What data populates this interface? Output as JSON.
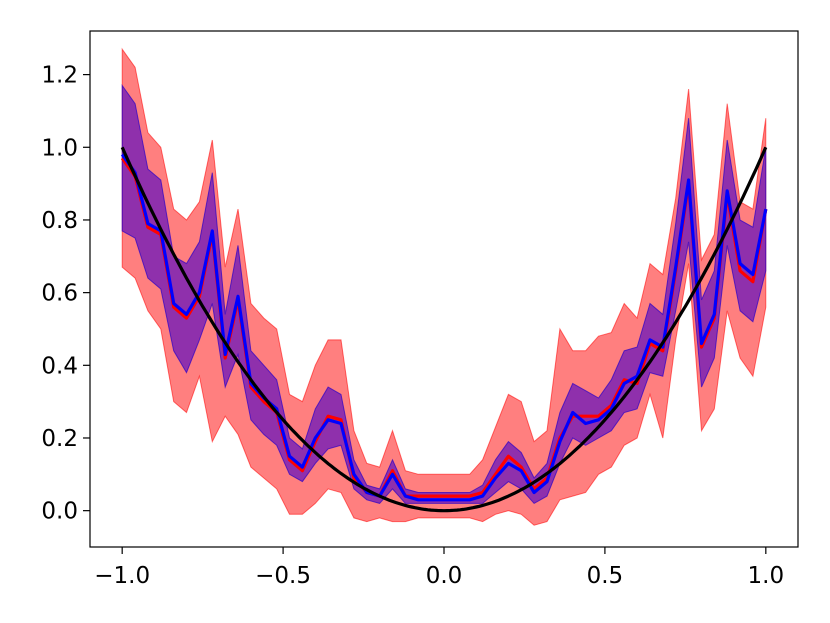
{
  "chart_data": {
    "type": "line",
    "title": "",
    "xlabel": "",
    "ylabel": "",
    "xlim": [
      -1.1,
      1.1
    ],
    "ylim": [
      -0.1,
      1.32
    ],
    "grid": false,
    "x_ticks": [
      {
        "value": -1.0,
        "label": "−1.0"
      },
      {
        "value": -0.5,
        "label": "−0.5"
      },
      {
        "value": 0.0,
        "label": "0.0"
      },
      {
        "value": 0.5,
        "label": "0.5"
      },
      {
        "value": 1.0,
        "label": "1.0"
      }
    ],
    "y_ticks": [
      {
        "value": 0.0,
        "label": "0.0"
      },
      {
        "value": 0.2,
        "label": "0.2"
      },
      {
        "value": 0.4,
        "label": "0.4"
      },
      {
        "value": 0.6,
        "label": "0.6"
      },
      {
        "value": 0.8,
        "label": "0.8"
      },
      {
        "value": 1.0,
        "label": "1.0"
      },
      {
        "value": 1.2,
        "label": "1.2"
      }
    ],
    "x": [
      -1.0,
      -0.96,
      -0.92,
      -0.88,
      -0.84,
      -0.8,
      -0.76,
      -0.72,
      -0.68,
      -0.64,
      -0.6,
      -0.56,
      -0.52,
      -0.48,
      -0.44,
      -0.4,
      -0.36,
      -0.32,
      -0.28,
      -0.24,
      -0.2,
      -0.16,
      -0.12,
      -0.08,
      -0.04,
      0.0,
      0.04,
      0.08,
      0.12,
      0.16,
      0.2,
      0.24,
      0.28,
      0.32,
      0.36,
      0.4,
      0.44,
      0.48,
      0.52,
      0.56,
      0.6,
      0.64,
      0.68,
      0.72,
      0.76,
      0.8,
      0.84,
      0.88,
      0.92,
      0.96,
      1.0
    ],
    "series": [
      {
        "role": "mean",
        "color": "#ff0000",
        "values": [
          0.97,
          0.92,
          0.78,
          0.76,
          0.56,
          0.53,
          0.59,
          0.76,
          0.42,
          0.58,
          0.34,
          0.3,
          0.27,
          0.14,
          0.11,
          0.19,
          0.26,
          0.25,
          0.09,
          0.05,
          0.04,
          0.11,
          0.04,
          0.04,
          0.04,
          0.04,
          0.04,
          0.04,
          0.05,
          0.1,
          0.15,
          0.12,
          0.06,
          0.09,
          0.2,
          0.26,
          0.26,
          0.26,
          0.29,
          0.36,
          0.35,
          0.46,
          0.44,
          0.66,
          0.9,
          0.45,
          0.53,
          0.87,
          0.66,
          0.63,
          0.83
        ],
        "band_lower": [
          0.67,
          0.64,
          0.55,
          0.5,
          0.3,
          0.27,
          0.37,
          0.19,
          0.26,
          0.21,
          0.12,
          0.09,
          0.06,
          -0.01,
          -0.01,
          0.02,
          0.06,
          0.05,
          -0.02,
          -0.03,
          -0.02,
          -0.03,
          -0.03,
          -0.02,
          -0.02,
          -0.02,
          -0.02,
          -0.02,
          -0.03,
          -0.01,
          0.0,
          -0.01,
          -0.04,
          -0.03,
          0.03,
          0.04,
          0.05,
          0.1,
          0.12,
          0.18,
          0.2,
          0.32,
          0.2,
          0.47,
          0.68,
          0.22,
          0.28,
          0.55,
          0.42,
          0.37,
          0.56
        ],
        "band_upper": [
          1.27,
          1.22,
          1.04,
          1.0,
          0.83,
          0.8,
          0.85,
          1.02,
          0.67,
          0.83,
          0.57,
          0.53,
          0.5,
          0.32,
          0.3,
          0.4,
          0.47,
          0.47,
          0.22,
          0.13,
          0.12,
          0.22,
          0.11,
          0.1,
          0.1,
          0.1,
          0.1,
          0.1,
          0.14,
          0.23,
          0.32,
          0.3,
          0.19,
          0.22,
          0.5,
          0.44,
          0.44,
          0.48,
          0.49,
          0.57,
          0.53,
          0.68,
          0.65,
          0.86,
          1.16,
          0.69,
          0.76,
          1.12,
          0.85,
          0.83,
          1.08
        ]
      },
      {
        "role": "mean",
        "color": "#0000ff",
        "values": [
          0.98,
          0.93,
          0.79,
          0.77,
          0.57,
          0.54,
          0.6,
          0.77,
          0.43,
          0.59,
          0.35,
          0.31,
          0.28,
          0.15,
          0.12,
          0.2,
          0.25,
          0.24,
          0.1,
          0.05,
          0.04,
          0.1,
          0.04,
          0.03,
          0.03,
          0.03,
          0.03,
          0.03,
          0.04,
          0.09,
          0.13,
          0.11,
          0.05,
          0.08,
          0.19,
          0.27,
          0.24,
          0.25,
          0.28,
          0.35,
          0.37,
          0.47,
          0.45,
          0.67,
          0.91,
          0.46,
          0.54,
          0.88,
          0.68,
          0.65,
          0.83
        ],
        "band_lower": [
          0.77,
          0.75,
          0.64,
          0.61,
          0.44,
          0.38,
          0.47,
          0.57,
          0.34,
          0.43,
          0.25,
          0.21,
          0.18,
          0.1,
          0.08,
          0.13,
          0.17,
          0.18,
          0.06,
          0.03,
          0.02,
          0.06,
          0.02,
          0.02,
          0.02,
          0.02,
          0.02,
          0.02,
          0.02,
          0.05,
          0.08,
          0.06,
          0.02,
          0.04,
          0.13,
          0.2,
          0.18,
          0.2,
          0.22,
          0.27,
          0.28,
          0.38,
          0.37,
          0.55,
          0.74,
          0.34,
          0.42,
          0.73,
          0.55,
          0.52,
          0.66
        ],
        "band_upper": [
          1.17,
          1.12,
          0.94,
          0.91,
          0.7,
          0.68,
          0.74,
          0.93,
          0.54,
          0.73,
          0.44,
          0.4,
          0.36,
          0.2,
          0.17,
          0.28,
          0.34,
          0.32,
          0.14,
          0.07,
          0.06,
          0.14,
          0.06,
          0.05,
          0.05,
          0.05,
          0.05,
          0.05,
          0.07,
          0.14,
          0.19,
          0.16,
          0.09,
          0.13,
          0.27,
          0.35,
          0.33,
          0.31,
          0.36,
          0.44,
          0.45,
          0.57,
          0.54,
          0.79,
          1.08,
          0.58,
          0.66,
          1.02,
          0.8,
          0.78,
          1.0
        ]
      },
      {
        "role": "true-function",
        "color": "#000000",
        "function": "x^2"
      }
    ]
  }
}
